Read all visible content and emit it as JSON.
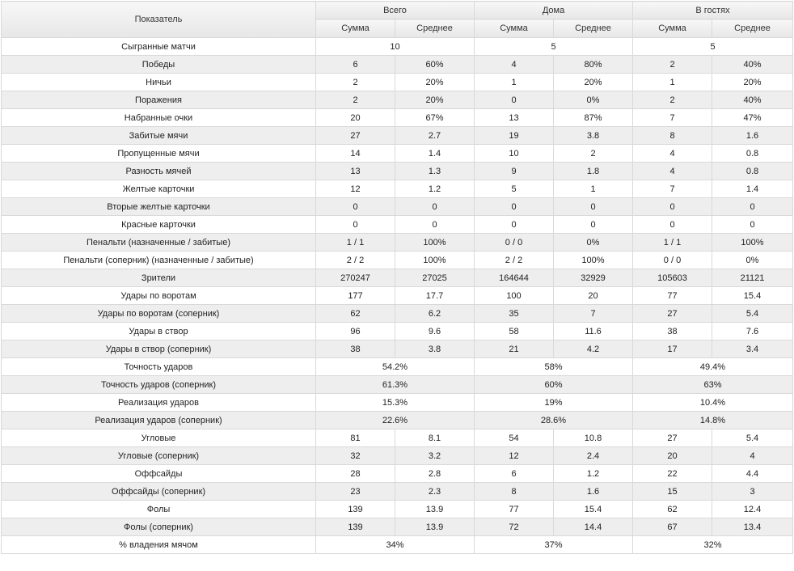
{
  "table": {
    "header": {
      "indicator": "Показатель",
      "groups": [
        "Всего",
        "Дома",
        "В гостях"
      ],
      "sub": [
        "Сумма",
        "Среднее"
      ]
    },
    "rows": [
      {
        "label": "Сыгранные матчи",
        "merged": true,
        "vals": [
          "10",
          "5",
          "5"
        ]
      },
      {
        "label": "Победы",
        "merged": false,
        "vals": [
          "6",
          "60%",
          "4",
          "80%",
          "2",
          "40%"
        ]
      },
      {
        "label": "Ничьи",
        "merged": false,
        "vals": [
          "2",
          "20%",
          "1",
          "20%",
          "1",
          "20%"
        ]
      },
      {
        "label": "Поражения",
        "merged": false,
        "vals": [
          "2",
          "20%",
          "0",
          "0%",
          "2",
          "40%"
        ]
      },
      {
        "label": "Набранные очки",
        "merged": false,
        "vals": [
          "20",
          "67%",
          "13",
          "87%",
          "7",
          "47%"
        ]
      },
      {
        "label": "Забитые мячи",
        "merged": false,
        "vals": [
          "27",
          "2.7",
          "19",
          "3.8",
          "8",
          "1.6"
        ]
      },
      {
        "label": "Пропущенные мячи",
        "merged": false,
        "vals": [
          "14",
          "1.4",
          "10",
          "2",
          "4",
          "0.8"
        ]
      },
      {
        "label": "Разность мячей",
        "merged": false,
        "vals": [
          "13",
          "1.3",
          "9",
          "1.8",
          "4",
          "0.8"
        ]
      },
      {
        "label": "Желтые карточки",
        "merged": false,
        "vals": [
          "12",
          "1.2",
          "5",
          "1",
          "7",
          "1.4"
        ]
      },
      {
        "label": "Вторые желтые карточки",
        "merged": false,
        "vals": [
          "0",
          "0",
          "0",
          "0",
          "0",
          "0"
        ]
      },
      {
        "label": "Красные карточки",
        "merged": false,
        "vals": [
          "0",
          "0",
          "0",
          "0",
          "0",
          "0"
        ]
      },
      {
        "label": "Пенальти (назначенные / забитые)",
        "merged": false,
        "vals": [
          "1 / 1",
          "100%",
          "0 / 0",
          "0%",
          "1 / 1",
          "100%"
        ]
      },
      {
        "label": "Пенальти (соперник) (назначенные / забитые)",
        "merged": false,
        "vals": [
          "2 / 2",
          "100%",
          "2 / 2",
          "100%",
          "0 / 0",
          "0%"
        ]
      },
      {
        "label": "Зрители",
        "merged": false,
        "vals": [
          "270247",
          "27025",
          "164644",
          "32929",
          "105603",
          "21121"
        ]
      },
      {
        "label": "Удары по воротам",
        "merged": false,
        "vals": [
          "177",
          "17.7",
          "100",
          "20",
          "77",
          "15.4"
        ]
      },
      {
        "label": "Удары по воротам (соперник)",
        "merged": false,
        "vals": [
          "62",
          "6.2",
          "35",
          "7",
          "27",
          "5.4"
        ]
      },
      {
        "label": "Удары в створ",
        "merged": false,
        "vals": [
          "96",
          "9.6",
          "58",
          "11.6",
          "38",
          "7.6"
        ]
      },
      {
        "label": "Удары в створ (соперник)",
        "merged": false,
        "vals": [
          "38",
          "3.8",
          "21",
          "4.2",
          "17",
          "3.4"
        ]
      },
      {
        "label": "Точность ударов",
        "merged": true,
        "vals": [
          "54.2%",
          "58%",
          "49.4%"
        ]
      },
      {
        "label": "Точность ударов (соперник)",
        "merged": true,
        "vals": [
          "61.3%",
          "60%",
          "63%"
        ]
      },
      {
        "label": "Реализация ударов",
        "merged": true,
        "vals": [
          "15.3%",
          "19%",
          "10.4%"
        ]
      },
      {
        "label": "Реализация ударов (соперник)",
        "merged": true,
        "vals": [
          "22.6%",
          "28.6%",
          "14.8%"
        ]
      },
      {
        "label": "Угловые",
        "merged": false,
        "vals": [
          "81",
          "8.1",
          "54",
          "10.8",
          "27",
          "5.4"
        ]
      },
      {
        "label": "Угловые (соперник)",
        "merged": false,
        "vals": [
          "32",
          "3.2",
          "12",
          "2.4",
          "20",
          "4"
        ]
      },
      {
        "label": "Оффсайды",
        "merged": false,
        "vals": [
          "28",
          "2.8",
          "6",
          "1.2",
          "22",
          "4.4"
        ]
      },
      {
        "label": "Оффсайды (соперник)",
        "merged": false,
        "vals": [
          "23",
          "2.3",
          "8",
          "1.6",
          "15",
          "3"
        ]
      },
      {
        "label": "Фолы",
        "merged": false,
        "vals": [
          "139",
          "13.9",
          "77",
          "15.4",
          "62",
          "12.4"
        ]
      },
      {
        "label": "Фолы (соперник)",
        "merged": false,
        "vals": [
          "139",
          "13.9",
          "72",
          "14.4",
          "67",
          "13.4"
        ]
      },
      {
        "label": "% владения мячом",
        "merged": true,
        "vals": [
          "34%",
          "37%",
          "32%"
        ]
      }
    ]
  }
}
